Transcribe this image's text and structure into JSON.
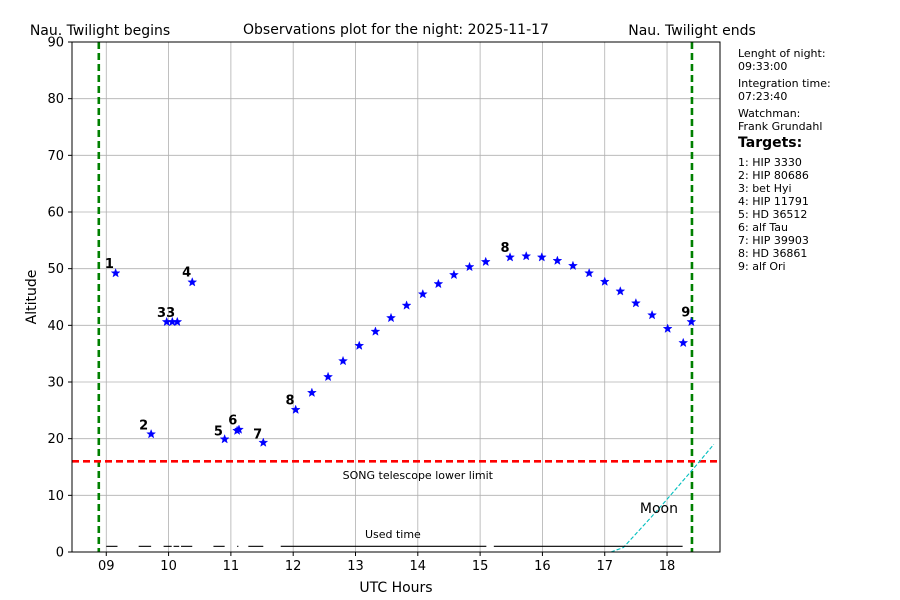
{
  "chart_data": {
    "type": "scatter",
    "title": "Observations plot for the night: 2025-11-17",
    "xlabel": "UTC Hours",
    "ylabel": "Altitude",
    "xlim": [
      8.45,
      18.85
    ],
    "ylim": [
      0,
      90
    ],
    "xticks": [
      9,
      10,
      11,
      12,
      13,
      14,
      15,
      16,
      17,
      18
    ],
    "xtick_labels": [
      "09",
      "10",
      "11",
      "12",
      "13",
      "14",
      "15",
      "16",
      "17",
      "18"
    ],
    "yticks": [
      0,
      10,
      20,
      30,
      40,
      50,
      60,
      70,
      80,
      90
    ],
    "grid": true,
    "twilight_begin": {
      "label": "Nau. Twilight begins",
      "x": 8.88,
      "color": "#008000"
    },
    "twilight_end": {
      "label": "Nau. Twilight ends",
      "x": 18.4,
      "color": "#008000"
    },
    "lower_limit": {
      "label": "SONG telescope lower limit",
      "y": 16,
      "color": "#ff0000"
    },
    "observations": {
      "color": "#0000ff",
      "x": [
        9.15,
        9.72,
        9.97,
        10.06,
        10.14,
        10.38,
        10.9,
        11.1,
        11.13,
        11.52,
        12.04,
        12.3,
        12.56,
        12.8,
        13.06,
        13.32,
        13.57,
        13.82,
        14.08,
        14.33,
        14.58,
        14.83,
        15.09,
        15.48,
        15.74,
        15.99,
        16.24,
        16.49,
        16.75,
        17.0,
        17.25,
        17.5,
        17.76,
        18.01,
        18.26,
        18.39
      ],
      "y": [
        49.2,
        20.8,
        40.6,
        40.6,
        40.6,
        47.6,
        19.9,
        21.4,
        21.6,
        19.3,
        25.1,
        28.1,
        30.9,
        33.7,
        36.4,
        38.9,
        41.3,
        43.5,
        45.5,
        47.3,
        48.9,
        50.3,
        51.2,
        52.0,
        52.2,
        52.0,
        51.4,
        50.5,
        49.2,
        47.7,
        46.0,
        43.9,
        41.8,
        39.4,
        36.9,
        40.6
      ]
    },
    "point_labels": [
      {
        "text": "1",
        "x": 9.05,
        "y": 50.1
      },
      {
        "text": "2",
        "x": 9.6,
        "y": 21.6
      },
      {
        "text": "33",
        "x": 9.96,
        "y": 41.5
      },
      {
        "text": "4",
        "x": 10.29,
        "y": 48.6
      },
      {
        "text": "5",
        "x": 10.8,
        "y": 20.6
      },
      {
        "text": "6",
        "x": 11.03,
        "y": 22.5
      },
      {
        "text": "7",
        "x": 11.43,
        "y": 20.0
      },
      {
        "text": "8",
        "x": 11.95,
        "y": 26.0
      },
      {
        "text": "8",
        "x": 15.4,
        "y": 52.9
      },
      {
        "text": "9",
        "x": 18.3,
        "y": 41.6
      }
    ],
    "moon": {
      "label": "Moon",
      "label_x": 17.87,
      "label_y": 7.8,
      "color": "#00bfbf",
      "x": [
        17.1,
        17.3,
        17.5,
        17.75,
        18.0,
        18.25,
        18.5,
        18.75
      ],
      "y": [
        0.0,
        0.8,
        3.2,
        6.2,
        9.3,
        12.5,
        15.7,
        19.0
      ]
    },
    "used_time": {
      "label": "Used time",
      "y": 1,
      "segments": [
        [
          9.0,
          9.18
        ],
        [
          9.52,
          9.72
        ],
        [
          9.92,
          10.05
        ],
        [
          10.08,
          10.17
        ],
        [
          10.2,
          10.38
        ],
        [
          10.72,
          10.9
        ],
        [
          11.1,
          11.12
        ],
        [
          11.28,
          11.52
        ],
        [
          11.8,
          15.1
        ],
        [
          15.22,
          18.25
        ]
      ]
    }
  },
  "sidebar": {
    "length_label": "Lenght of night:",
    "length_value": "09:33:00",
    "integration_label": "Integration time:",
    "integration_value": "07:23:40",
    "watchman_label": "Watchman:",
    "watchman_value": "Frank Grundahl",
    "targets_heading": "Targets:",
    "targets": [
      "1: HIP 3330",
      "2: HIP 80686",
      "3: bet Hyi",
      "4: HIP 11791",
      "5: HD 36512",
      "6: alf Tau",
      "7: HIP 39903",
      "8: HD 36861",
      "9: alf Ori"
    ]
  }
}
